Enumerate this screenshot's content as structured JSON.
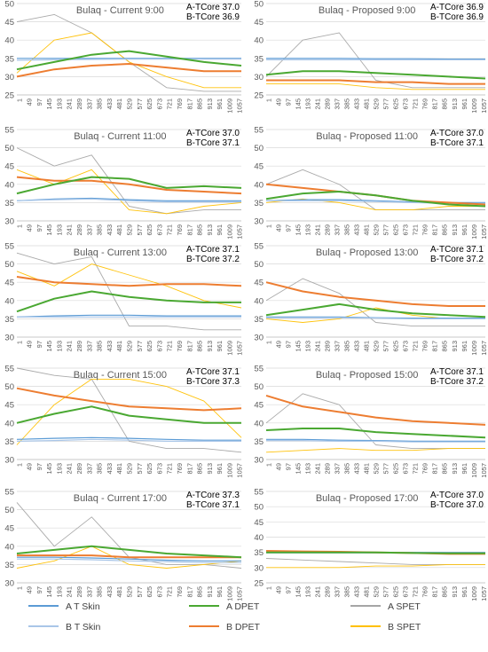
{
  "figure": {
    "x_ticks": [
      "1",
      "49",
      "97",
      "145",
      "193",
      "241",
      "289",
      "337",
      "385",
      "433",
      "481",
      "529",
      "577",
      "625",
      "673",
      "721",
      "769",
      "817",
      "865",
      "913",
      "961",
      "1009",
      "1057"
    ],
    "legend": [
      {
        "label": "A T Skin",
        "color": "#5b9bd5"
      },
      {
        "label": "A DPET",
        "color": "#4aa832"
      },
      {
        "label": "A SPET",
        "color": "#a5a5a5"
      },
      {
        "label": "B T Skin",
        "color": "#a9c6e8"
      },
      {
        "label": "B DPET",
        "color": "#ed7d31"
      },
      {
        "label": "B SPET",
        "color": "#ffc000"
      }
    ]
  },
  "chart_data": [
    {
      "type": "line",
      "title": "Bulaq - Current 9:00",
      "core_a": "A-TCore 37.0",
      "core_b": "B-TCore 36.9",
      "ylim": [
        25,
        50
      ],
      "yticks": [
        25,
        30,
        35,
        40,
        45,
        50
      ],
      "grid": true,
      "series": [
        {
          "name": "A T Skin",
          "values": [
            35.0,
            35.0,
            35.0,
            35.0,
            35.0,
            35.0,
            35.0
          ]
        },
        {
          "name": "B T Skin",
          "values": [
            34.5,
            34.6,
            34.7,
            34.8,
            34.8,
            34.8,
            34.8
          ]
        },
        {
          "name": "A DPET",
          "values": [
            32.0,
            34.0,
            36.0,
            37.0,
            35.5,
            34.0,
            33.0
          ]
        },
        {
          "name": "B DPET",
          "values": [
            30.0,
            32.0,
            33.0,
            33.5,
            32.5,
            31.5,
            31.5
          ]
        },
        {
          "name": "A SPET",
          "values": [
            45.0,
            47.0,
            42.0,
            34.0,
            27.0,
            26.0,
            26.0
          ]
        },
        {
          "name": "B SPET",
          "values": [
            31.0,
            40.0,
            42.0,
            34.0,
            30.0,
            27.0,
            27.0
          ]
        }
      ]
    },
    {
      "type": "line",
      "title": "Bulaq - Proposed 9:00",
      "core_a": "A-TCore 36.9",
      "core_b": "B-TCore 36.9",
      "ylim": [
        25,
        50
      ],
      "yticks": [
        25,
        30,
        35,
        40,
        45,
        50
      ],
      "grid": true,
      "series": [
        {
          "name": "A T Skin",
          "values": [
            35.0,
            35.0,
            35.0,
            34.9,
            34.9,
            34.8,
            34.8
          ]
        },
        {
          "name": "B T Skin",
          "values": [
            34.6,
            34.6,
            34.6,
            34.6,
            34.6,
            34.6,
            34.6
          ]
        },
        {
          "name": "A DPET",
          "values": [
            30.5,
            31.5,
            31.5,
            31.0,
            30.5,
            30.0,
            29.5
          ]
        },
        {
          "name": "B DPET",
          "values": [
            29.0,
            29.0,
            29.0,
            28.5,
            28.5,
            28.0,
            28.0
          ]
        },
        {
          "name": "A SPET",
          "values": [
            30.0,
            40.0,
            42.0,
            29.0,
            27.0,
            27.0,
            27.0
          ]
        },
        {
          "name": "B SPET",
          "values": [
            28.0,
            28.0,
            28.0,
            27.0,
            26.5,
            26.5,
            26.5
          ]
        }
      ]
    },
    {
      "type": "line",
      "title": "Bulaq - Current 11:00",
      "core_a": "A-TCore 37.0",
      "core_b": "B-TCore 37.1",
      "ylim": [
        30,
        55
      ],
      "yticks": [
        30,
        35,
        40,
        45,
        50,
        55
      ],
      "grid": true,
      "series": [
        {
          "name": "A T Skin",
          "values": [
            35.5,
            36.0,
            36.2,
            35.8,
            35.5,
            35.5,
            35.5
          ]
        },
        {
          "name": "B T Skin",
          "values": [
            35.5,
            35.8,
            36.0,
            35.5,
            35.2,
            35.2,
            35.2
          ]
        },
        {
          "name": "A DPET",
          "values": [
            37.5,
            40.0,
            42.0,
            41.5,
            39.0,
            39.5,
            39.0
          ]
        },
        {
          "name": "B DPET",
          "values": [
            42.0,
            41.0,
            41.0,
            40.0,
            38.5,
            38.0,
            37.5
          ]
        },
        {
          "name": "A SPET",
          "values": [
            50.0,
            45.0,
            48.0,
            34.0,
            32.0,
            33.0,
            33.0
          ]
        },
        {
          "name": "B SPET",
          "values": [
            44.0,
            40.0,
            44.0,
            33.0,
            32.0,
            34.0,
            35.0
          ]
        }
      ]
    },
    {
      "type": "line",
      "title": "Bulaq - Proposed 11:00",
      "core_a": "A-TCore 37.0",
      "core_b": "B-TCore 37.1",
      "ylim": [
        30,
        55
      ],
      "yticks": [
        30,
        35,
        40,
        45,
        50,
        55
      ],
      "grid": true,
      "series": [
        {
          "name": "A T Skin",
          "values": [
            35.5,
            35.8,
            35.8,
            35.5,
            35.2,
            35.0,
            35.0
          ]
        },
        {
          "name": "B T Skin",
          "values": [
            35.5,
            35.5,
            35.5,
            35.3,
            35.0,
            34.8,
            34.8
          ]
        },
        {
          "name": "A DPET",
          "values": [
            36.0,
            37.5,
            38.0,
            37.0,
            35.5,
            34.5,
            34.0
          ]
        },
        {
          "name": "B DPET",
          "values": [
            40.0,
            39.0,
            38.0,
            37.0,
            35.5,
            35.0,
            34.5
          ]
        },
        {
          "name": "A SPET",
          "values": [
            40.0,
            44.0,
            40.0,
            33.0,
            33.0,
            33.0,
            33.0
          ]
        },
        {
          "name": "B SPET",
          "values": [
            35.0,
            36.0,
            35.0,
            33.0,
            33.0,
            34.0,
            34.0
          ]
        }
      ]
    },
    {
      "type": "line",
      "title": "Bulaq - Current 13:00",
      "core_a": "A-TCore 37.1",
      "core_b": "B-TCore 37.2",
      "ylim": [
        30,
        55
      ],
      "yticks": [
        30,
        35,
        40,
        45,
        50,
        55
      ],
      "grid": true,
      "series": [
        {
          "name": "A T Skin",
          "values": [
            35.5,
            35.8,
            36.0,
            36.0,
            35.8,
            35.8,
            35.8
          ]
        },
        {
          "name": "B T Skin",
          "values": [
            35.5,
            35.5,
            35.5,
            35.5,
            35.5,
            35.5,
            35.5
          ]
        },
        {
          "name": "A DPET",
          "values": [
            37.0,
            40.5,
            42.5,
            41.0,
            40.0,
            39.5,
            39.5
          ]
        },
        {
          "name": "B DPET",
          "values": [
            46.5,
            45.0,
            44.5,
            44.0,
            44.5,
            44.5,
            44.0
          ]
        },
        {
          "name": "A SPET",
          "values": [
            53.0,
            50.0,
            52.0,
            33.0,
            33.0,
            32.0,
            32.0
          ]
        },
        {
          "name": "B SPET",
          "values": [
            48.0,
            44.0,
            50.0,
            47.0,
            44.0,
            40.0,
            38.0
          ]
        }
      ]
    },
    {
      "type": "line",
      "title": "Bulaq - Proposed 13:00",
      "core_a": "A-TCore 37.1",
      "core_b": "B-TCore 37.2",
      "ylim": [
        30,
        55
      ],
      "yticks": [
        30,
        35,
        40,
        45,
        50,
        55
      ],
      "grid": true,
      "series": [
        {
          "name": "A T Skin",
          "values": [
            35.5,
            35.5,
            35.5,
            35.3,
            35.2,
            35.2,
            35.2
          ]
        },
        {
          "name": "B T Skin",
          "values": [
            35.3,
            35.3,
            35.3,
            35.2,
            35.0,
            35.0,
            35.0
          ]
        },
        {
          "name": "A DPET",
          "values": [
            36.0,
            37.5,
            39.0,
            37.5,
            36.5,
            36.0,
            35.5
          ]
        },
        {
          "name": "B DPET",
          "values": [
            45.0,
            42.5,
            41.0,
            40.0,
            39.0,
            38.5,
            38.5
          ]
        },
        {
          "name": "A SPET",
          "values": [
            40.0,
            46.0,
            42.0,
            34.0,
            33.0,
            33.0,
            33.0
          ]
        },
        {
          "name": "B SPET",
          "values": [
            35.0,
            34.0,
            35.0,
            38.0,
            36.0,
            35.0,
            35.0
          ]
        }
      ]
    },
    {
      "type": "line",
      "title": "Bulaq - Current 15:00",
      "core_a": "A-TCore 37.1",
      "core_b": "B-TCore 37.3",
      "ylim": [
        30,
        55
      ],
      "yticks": [
        30,
        35,
        40,
        45,
        50,
        55
      ],
      "grid": true,
      "series": [
        {
          "name": "A T Skin",
          "values": [
            35.5,
            35.8,
            36.0,
            35.8,
            35.5,
            35.3,
            35.3
          ]
        },
        {
          "name": "B T Skin",
          "values": [
            35.0,
            35.2,
            35.5,
            35.3,
            35.0,
            35.0,
            35.0
          ]
        },
        {
          "name": "A DPET",
          "values": [
            40.0,
            42.5,
            44.5,
            42.0,
            41.0,
            40.0,
            40.0
          ]
        },
        {
          "name": "B DPET",
          "values": [
            49.5,
            47.5,
            46.0,
            44.5,
            44.0,
            43.5,
            44.0
          ]
        },
        {
          "name": "A SPET",
          "values": [
            55.0,
            53.0,
            52.0,
            35.0,
            33.0,
            33.0,
            32.0
          ]
        },
        {
          "name": "B SPET",
          "values": [
            34.0,
            45.0,
            52.0,
            52.0,
            50.0,
            46.0,
            36.0
          ]
        }
      ]
    },
    {
      "type": "line",
      "title": "Bulaq - Proposed 15:00",
      "core_a": "A-TCore 37.1",
      "core_b": "B-TCore 37.2",
      "ylim": [
        30,
        55
      ],
      "yticks": [
        30,
        35,
        40,
        45,
        50,
        55
      ],
      "grid": true,
      "series": [
        {
          "name": "A T Skin",
          "values": [
            35.5,
            35.5,
            35.3,
            35.2,
            35.0,
            35.0,
            35.0
          ]
        },
        {
          "name": "B T Skin",
          "values": [
            35.2,
            35.2,
            35.0,
            35.0,
            34.8,
            34.8,
            34.8
          ]
        },
        {
          "name": "A DPET",
          "values": [
            38.0,
            38.5,
            38.5,
            37.5,
            37.0,
            36.5,
            36.0
          ]
        },
        {
          "name": "B DPET",
          "values": [
            47.5,
            44.5,
            43.0,
            41.5,
            40.5,
            40.0,
            39.5
          ]
        },
        {
          "name": "A SPET",
          "values": [
            40.0,
            48.0,
            45.0,
            34.0,
            33.0,
            33.0,
            33.0
          ]
        },
        {
          "name": "B SPET",
          "values": [
            32.0,
            32.5,
            33.0,
            32.5,
            32.5,
            33.0,
            33.0
          ]
        }
      ]
    },
    {
      "type": "line",
      "title": "Bulaq - Current 17:00",
      "core_a": "A-TCore 37.3",
      "core_b": "B-TCore 37.1",
      "ylim": [
        30,
        55
      ],
      "yticks": [
        30,
        35,
        40,
        45,
        50,
        55
      ],
      "grid": true,
      "series": [
        {
          "name": "A T Skin",
          "values": [
            37.0,
            37.0,
            36.8,
            36.5,
            36.2,
            36.0,
            36.0
          ]
        },
        {
          "name": "B T Skin",
          "values": [
            36.5,
            36.5,
            36.3,
            36.0,
            35.8,
            35.5,
            35.5
          ]
        },
        {
          "name": "A DPET",
          "values": [
            38.0,
            39.0,
            40.0,
            39.0,
            38.0,
            37.5,
            37.0
          ]
        },
        {
          "name": "B DPET",
          "values": [
            37.5,
            37.5,
            37.5,
            37.0,
            37.0,
            37.0,
            37.0
          ]
        },
        {
          "name": "A SPET",
          "values": [
            52.0,
            40.0,
            48.0,
            37.0,
            35.0,
            35.0,
            34.0
          ]
        },
        {
          "name": "B SPET",
          "values": [
            34.0,
            36.0,
            40.0,
            35.0,
            34.0,
            35.0,
            36.0
          ]
        }
      ]
    },
    {
      "type": "line",
      "title": "Bulaq - Proposed 17:00",
      "core_a": "A-TCore 37.0",
      "core_b": "B-TCore 37.0",
      "ylim": [
        25,
        55
      ],
      "yticks": [
        25,
        30,
        35,
        40,
        45,
        50,
        55
      ],
      "grid": true,
      "series": [
        {
          "name": "A T Skin",
          "values": [
            35.0,
            35.0,
            35.0,
            35.0,
            35.0,
            35.0,
            35.0
          ]
        },
        {
          "name": "B T Skin",
          "values": [
            34.8,
            34.8,
            34.8,
            34.8,
            34.8,
            34.8,
            34.8
          ]
        },
        {
          "name": "A DPET",
          "values": [
            35.0,
            35.0,
            35.0,
            35.0,
            34.8,
            34.7,
            34.7
          ]
        },
        {
          "name": "B DPET",
          "values": [
            35.5,
            35.3,
            35.2,
            35.0,
            34.8,
            34.5,
            34.5
          ]
        },
        {
          "name": "A SPET",
          "values": [
            33.0,
            32.5,
            32.0,
            31.5,
            31.0,
            31.0,
            31.0
          ]
        },
        {
          "name": "B SPET",
          "values": [
            30.0,
            30.0,
            30.0,
            30.5,
            30.5,
            31.0,
            31.0
          ]
        }
      ]
    }
  ]
}
